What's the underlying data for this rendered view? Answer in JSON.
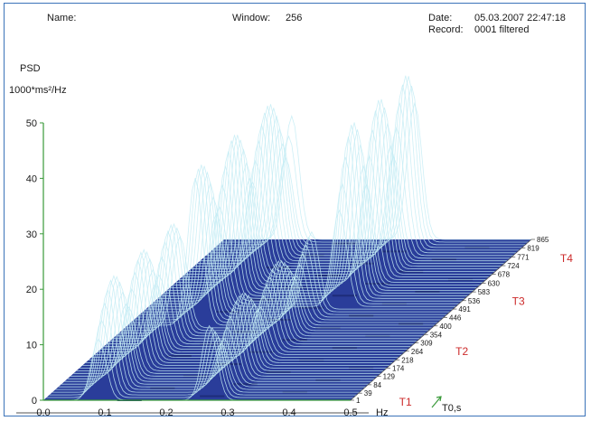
{
  "header": {
    "name_label": "Name:",
    "window_label": "Window:",
    "window_value": "256",
    "date_label": "Date:",
    "date_value": "05.03.2007 22:47:18",
    "record_label": "Record:",
    "record_value": "0001 filtered"
  },
  "chart_data": {
    "type": "surface-3d",
    "ylabel_top": "PSD",
    "ylabel_unit": "1000*ms²/Hz",
    "y_ticks": [
      "0",
      "10",
      "20",
      "30",
      "40",
      "50"
    ],
    "ylim": [
      0,
      50
    ],
    "x_ticks": [
      "0.0",
      "0.1",
      "0.2",
      "0.3",
      "0.4",
      "0.5"
    ],
    "xlim": [
      0,
      0.5
    ],
    "xlabel": "Hz",
    "z_ticks": [
      "1",
      "39",
      "84",
      "129",
      "174",
      "218",
      "264",
      "309",
      "354",
      "400",
      "446",
      "491",
      "536",
      "583",
      "630",
      "678",
      "724",
      "771",
      "819",
      "865"
    ],
    "zlabel": "T0,s",
    "periods": [
      "T1",
      "T2",
      "T3",
      "T4"
    ],
    "ridges": [
      {
        "freq": 0.09,
        "peak_psd": 20,
        "t_range": [
          1,
          400
        ]
      },
      {
        "freq": 0.11,
        "peak_psd": 28,
        "t_range": [
          400,
          865
        ]
      },
      {
        "freq": 0.27,
        "peak_psd": 14,
        "t_range": [
          1,
          500
        ]
      },
      {
        "freq": 0.31,
        "peak_psd": 31,
        "t_range": [
          500,
          865
        ]
      }
    ],
    "colors": {
      "surface": "#2a3d9a",
      "surface_dark": "#1e2d7a",
      "ridge": "#c4ecf4",
      "axis": "#3a9a3a",
      "period": "#cc2a2a"
    }
  }
}
